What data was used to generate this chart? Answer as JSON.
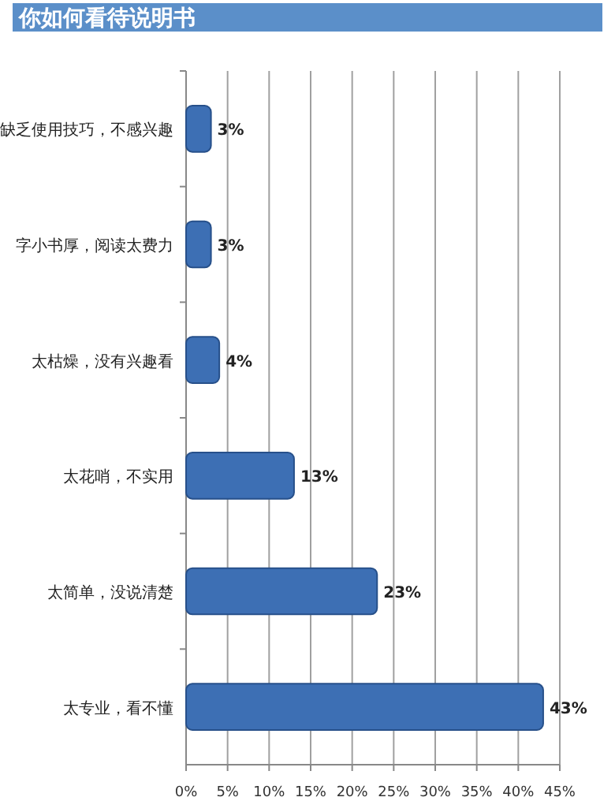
{
  "chart_data": {
    "type": "bar",
    "orientation": "horizontal",
    "title": "你如何看待说明书",
    "categories": [
      "缺乏使用技巧，不感兴趣",
      "字小书厚，阅读太费力",
      "太枯燥，没有兴趣看",
      "太花哨，不实用",
      "太简单，没说清楚",
      "太专业，看不懂"
    ],
    "values": [
      3,
      3,
      4,
      13,
      23,
      43
    ],
    "value_labels": [
      "3%",
      "3%",
      "4%",
      "13%",
      "23%",
      "43%"
    ],
    "color": "#3d6fb4",
    "xlim": [
      0,
      45
    ],
    "xticks": [
      {
        "value": 0,
        "label": "0%"
      },
      {
        "value": 5,
        "label": "5%"
      },
      {
        "value": 10,
        "label": "10%"
      },
      {
        "value": 15,
        "label": "15%"
      },
      {
        "value": 20,
        "label": "20%"
      },
      {
        "value": 25,
        "label": "25%"
      },
      {
        "value": 30,
        "label": "30%"
      },
      {
        "value": 35,
        "label": "35%"
      },
      {
        "value": 40,
        "label": "40%"
      },
      {
        "value": 45,
        "label": "45%"
      }
    ],
    "grid": "x"
  }
}
